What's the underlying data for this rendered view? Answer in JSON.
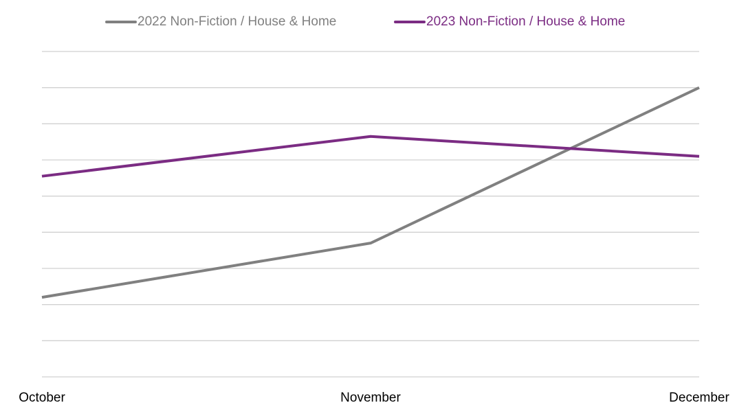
{
  "chart_data": {
    "type": "line",
    "categories": [
      "October",
      "November",
      "December"
    ],
    "series": [
      {
        "name": "2022 Non-Fiction / House & Home",
        "color": "#808080",
        "values": [
          2.2,
          3.7,
          8.0
        ]
      },
      {
        "name": "2023 Non-Fiction / House & Home",
        "color": "#7b2c83",
        "values": [
          5.55,
          6.65,
          6.1
        ]
      }
    ],
    "ylim": [
      0,
      9
    ],
    "yticks": [
      0,
      1,
      2,
      3,
      4,
      5,
      6,
      7,
      8,
      9
    ],
    "grid": true,
    "legend": "top"
  }
}
